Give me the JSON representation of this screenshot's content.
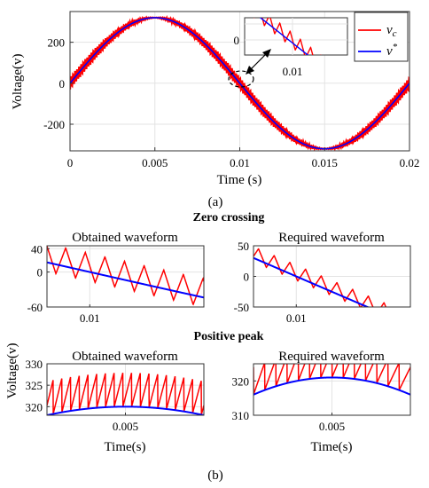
{
  "chart_data": [
    {
      "id": "a",
      "type": "line",
      "caption": "(a)",
      "xlabel": "Time (s)",
      "ylabel": "Voltage(v)",
      "xlim": [
        0,
        0.02
      ],
      "ylim": [
        -330,
        350
      ],
      "xticks": [
        "0",
        "0.005",
        "0.01",
        "0.015",
        "0.02"
      ],
      "yticks": [
        "200",
        "0",
        "-200"
      ],
      "grid": true,
      "legend": "top-right",
      "series": [
        {
          "name": "v_c",
          "color": "#ff0000",
          "amplitude": 320,
          "frequency_hz": 50,
          "ripple": 30
        },
        {
          "name": "v*",
          "color": "#0000ff",
          "amplitude": 320,
          "frequency_hz": 50,
          "ripple": 0
        }
      ],
      "inset": {
        "xtick": "0.01",
        "ytick": "0",
        "xlim": [
          0.0095,
          0.0108
        ],
        "ylim": [
          -30,
          30
        ]
      }
    },
    {
      "id": "b",
      "caption": "(b)",
      "section_titles": [
        "Zero crossing",
        "Positive peak"
      ],
      "ylabel": "Voltage(v)",
      "panels": [
        {
          "type": "line",
          "title": "Obtained waveform",
          "xlim": [
            0.0097,
            0.0108
          ],
          "ylim": [
            -60,
            45
          ],
          "xticks": [
            "0.01"
          ],
          "yticks": [
            "40",
            "0",
            "-60"
          ],
          "ripple": 48,
          "teeth": 8,
          "series": [
            {
              "color": "#ff0000"
            },
            {
              "color": "#0000ff"
            }
          ]
        },
        {
          "type": "line",
          "title": "Required waveform",
          "xlim": [
            0.0097,
            0.0108
          ],
          "ylim": [
            -50,
            50
          ],
          "xticks": [
            "0.01"
          ],
          "yticks": [
            "50",
            "0",
            "-50"
          ],
          "ripple": 25,
          "teeth": 10,
          "series": [
            {
              "color": "#ff0000"
            },
            {
              "color": "#0000ff"
            }
          ]
        },
        {
          "type": "line",
          "title": "Obtained waveform",
          "xlabel": "Time(s)",
          "xlim": [
            0.0043,
            0.0057
          ],
          "ylim": [
            318,
            330
          ],
          "xticks": [
            "0.005"
          ],
          "yticks": [
            "330",
            "325",
            "320"
          ],
          "ripple": 8,
          "teeth": 18,
          "series": [
            {
              "color": "#ff0000"
            },
            {
              "color": "#0000ff"
            }
          ]
        },
        {
          "type": "line",
          "title": "Required waveform",
          "xlabel": "Time(s)",
          "xlim": [
            0.0043,
            0.0057
          ],
          "ylim": [
            310,
            325
          ],
          "xticks": [
            "0.005"
          ],
          "yticks": [
            "320",
            "310"
          ],
          "ripple": 8,
          "teeth": 14,
          "series": [
            {
              "color": "#ff0000"
            },
            {
              "color": "#0000ff"
            }
          ]
        }
      ]
    }
  ]
}
